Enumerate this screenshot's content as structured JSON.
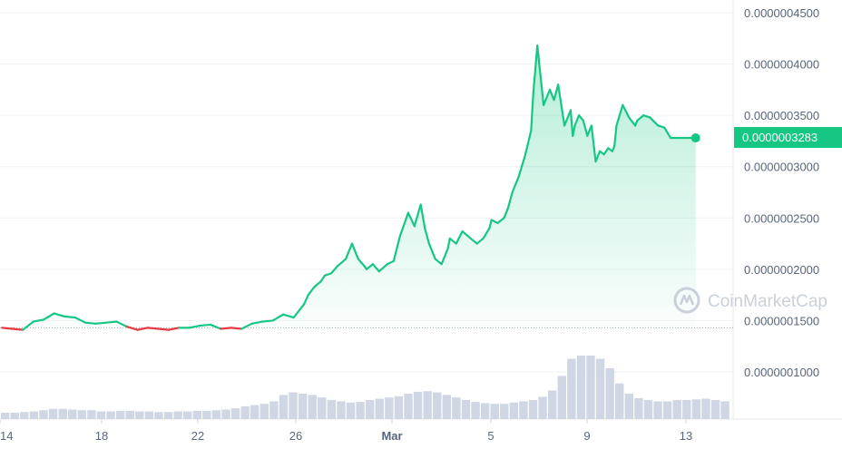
{
  "chart_data": {
    "type": "line",
    "x_ticks": [
      "14",
      "18",
      "22",
      "26",
      "Mar",
      "5",
      "9",
      "13"
    ],
    "y_ticks": [
      "0.0000004500",
      "0.0000004000",
      "0.0000003500",
      "0.0000003000",
      "0.0000002500",
      "0.0000002000",
      "0.0000001500",
      "0.0000001000"
    ],
    "ylim": [
      5.5e-08,
      4.6e-07
    ],
    "baseline_price": 1.43e-07,
    "current_price": 3.28e-07,
    "current_price_label": "0.0000003283",
    "watermark": "CoinMarketCap",
    "colors": {
      "up": "#16c784",
      "down": "#ea3943",
      "volume": "#cfd6e4",
      "grid": "#eff2f5",
      "text": "#58667e"
    },
    "series": [
      {
        "x": [
          -0.5,
          0.0,
          0.5,
          1.0,
          1.5,
          2.0,
          2.5,
          3.0,
          3.5,
          4.0,
          4.5,
          5.0,
          5.5,
          6.0,
          6.5,
          7.0,
          7.5,
          8.0,
          8.5,
          9.0,
          9.5,
          10.0,
          10.5,
          11.0,
          11.5,
          12.0,
          12.5,
          13.0,
          13.5,
          14.0,
          14.2,
          14.5,
          14.8,
          15.0,
          15.3,
          15.6,
          16.0,
          16.3,
          16.6,
          16.9,
          17.0,
          17.3,
          17.6,
          18.0,
          18.3,
          18.6,
          19.0,
          19.3,
          19.6,
          19.8,
          20.0,
          20.3,
          20.6,
          20.9,
          21.0,
          21.3,
          21.6,
          22.0,
          22.3,
          22.6,
          22.9,
          23.0,
          23.3,
          23.6,
          23.8,
          24.0,
          24.3,
          24.6,
          24.9,
          25.0,
          25.2,
          25.5,
          25.8,
          26.0,
          26.2,
          26.5,
          26.8,
          26.9,
          27.0,
          27.2,
          27.4,
          27.6,
          27.8,
          28.0,
          28.2,
          28.4,
          28.6,
          28.8,
          28.9,
          29.0,
          29.3,
          29.6,
          29.9,
          30.0,
          30.3,
          30.6,
          31.0,
          31.3,
          31.6,
          32.0,
          32.3,
          32.6,
          32.8
        ],
        "values": [
          1.43e-07,
          1.42e-07,
          1.41e-07,
          1.49e-07,
          1.51e-07,
          1.57e-07,
          1.54e-07,
          1.53e-07,
          1.48e-07,
          1.47e-07,
          1.48e-07,
          1.49e-07,
          1.44e-07,
          1.41e-07,
          1.43e-07,
          1.42e-07,
          1.41e-07,
          1.43e-07,
          1.43e-07,
          1.45e-07,
          1.46e-07,
          1.42e-07,
          1.43e-07,
          1.42e-07,
          1.47e-07,
          1.49e-07,
          1.5e-07,
          1.56e-07,
          1.53e-07,
          1.66e-07,
          1.75e-07,
          1.83e-07,
          1.88e-07,
          1.94e-07,
          1.96e-07,
          2.03e-07,
          2.1e-07,
          2.25e-07,
          2.1e-07,
          2.03e-07,
          2e-07,
          2.05e-07,
          1.98e-07,
          2.05e-07,
          2.08e-07,
          2.32e-07,
          2.55e-07,
          2.42e-07,
          2.63e-07,
          2.4e-07,
          2.25e-07,
          2.1e-07,
          2.05e-07,
          2.2e-07,
          2.3e-07,
          2.25e-07,
          2.37e-07,
          2.3e-07,
          2.25e-07,
          2.3e-07,
          2.4e-07,
          2.48e-07,
          2.45e-07,
          2.5e-07,
          2.6e-07,
          2.75e-07,
          2.9e-07,
          3.1e-07,
          3.35e-07,
          3.7e-07,
          4.18e-07,
          3.6e-07,
          3.75e-07,
          3.65e-07,
          3.8e-07,
          3.4e-07,
          3.55e-07,
          3.3e-07,
          3.4e-07,
          3.5e-07,
          3.45e-07,
          3.3e-07,
          3.4e-07,
          3.05e-07,
          3.15e-07,
          3.12e-07,
          3.18e-07,
          3.15e-07,
          3.2e-07,
          3.4e-07,
          3.6e-07,
          3.48e-07,
          3.4e-07,
          3.45e-07,
          3.5e-07,
          3.48e-07,
          3.4e-07,
          3.38e-07,
          3.28e-07,
          3.28e-07,
          3.28e-07,
          3.28e-07,
          3.28e-07
        ]
      }
    ],
    "volume": [
      0.1,
      0.1,
      0.11,
      0.12,
      0.14,
      0.16,
      0.16,
      0.15,
      0.14,
      0.14,
      0.12,
      0.12,
      0.13,
      0.13,
      0.12,
      0.12,
      0.11,
      0.11,
      0.12,
      0.12,
      0.13,
      0.13,
      0.14,
      0.15,
      0.17,
      0.2,
      0.22,
      0.24,
      0.28,
      0.38,
      0.42,
      0.4,
      0.38,
      0.34,
      0.3,
      0.28,
      0.26,
      0.27,
      0.3,
      0.32,
      0.34,
      0.36,
      0.4,
      0.43,
      0.44,
      0.42,
      0.38,
      0.34,
      0.3,
      0.27,
      0.25,
      0.24,
      0.24,
      0.26,
      0.28,
      0.3,
      0.35,
      0.45,
      0.68,
      0.95,
      1.0,
      1.0,
      0.95,
      0.8,
      0.56,
      0.4,
      0.33,
      0.3,
      0.28,
      0.28,
      0.3,
      0.3,
      0.31,
      0.32,
      0.3,
      0.28
    ],
    "xlim": [
      -0.6,
      34.6
    ]
  }
}
